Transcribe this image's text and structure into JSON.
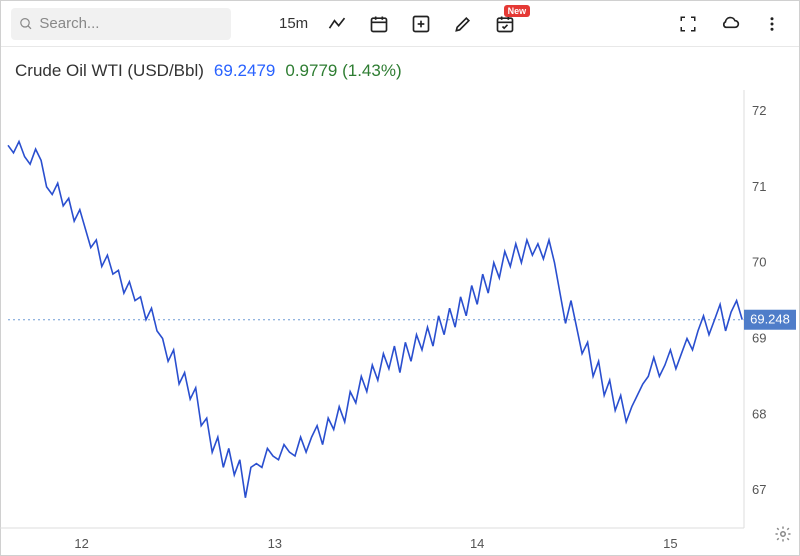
{
  "toolbar": {
    "search_placeholder": "Search...",
    "interval_label": "15m",
    "new_badge": "New"
  },
  "header": {
    "symbol": "Crude Oil WTI (USD/Bbl)",
    "price": "69.2479",
    "change": "0.9779 (1.43%)"
  },
  "chart": {
    "type": "line",
    "line_color": "#2a4fcf",
    "line_width": 1.6,
    "background_color": "#ffffff",
    "dotted_line_color": "#6e9bd6",
    "price_tag_bg": "#4f7dc9",
    "price_tag_text_color": "#ffffff",
    "y": {
      "min": 66.5,
      "max": 72.2,
      "ticks": [
        67,
        68,
        69,
        70,
        71,
        72
      ],
      "fontsize": 13
    },
    "x": {
      "min": 0,
      "max": 400,
      "ticks": [
        {
          "pos": 40,
          "label": "12"
        },
        {
          "pos": 145,
          "label": "13"
        },
        {
          "pos": 255,
          "label": "14"
        },
        {
          "pos": 360,
          "label": "15"
        }
      ],
      "fontsize": 13
    },
    "current_price": 69.248,
    "current_price_label": "69.248",
    "series": [
      [
        0,
        71.55
      ],
      [
        3,
        71.45
      ],
      [
        6,
        71.6
      ],
      [
        9,
        71.4
      ],
      [
        12,
        71.3
      ],
      [
        15,
        71.5
      ],
      [
        18,
        71.35
      ],
      [
        21,
        71.0
      ],
      [
        24,
        70.9
      ],
      [
        27,
        71.05
      ],
      [
        30,
        70.75
      ],
      [
        33,
        70.85
      ],
      [
        36,
        70.55
      ],
      [
        39,
        70.7
      ],
      [
        42,
        70.45
      ],
      [
        45,
        70.2
      ],
      [
        48,
        70.3
      ],
      [
        51,
        69.95
      ],
      [
        54,
        70.1
      ],
      [
        57,
        69.85
      ],
      [
        60,
        69.9
      ],
      [
        63,
        69.6
      ],
      [
        66,
        69.75
      ],
      [
        69,
        69.5
      ],
      [
        72,
        69.55
      ],
      [
        75,
        69.25
      ],
      [
        78,
        69.4
      ],
      [
        81,
        69.1
      ],
      [
        84,
        69.0
      ],
      [
        87,
        68.7
      ],
      [
        90,
        68.85
      ],
      [
        93,
        68.4
      ],
      [
        96,
        68.55
      ],
      [
        99,
        68.2
      ],
      [
        102,
        68.35
      ],
      [
        105,
        67.85
      ],
      [
        108,
        67.95
      ],
      [
        111,
        67.5
      ],
      [
        114,
        67.7
      ],
      [
        117,
        67.3
      ],
      [
        120,
        67.55
      ],
      [
        123,
        67.2
      ],
      [
        126,
        67.4
      ],
      [
        129,
        66.9
      ],
      [
        132,
        67.3
      ],
      [
        135,
        67.35
      ],
      [
        138,
        67.3
      ],
      [
        141,
        67.55
      ],
      [
        144,
        67.45
      ],
      [
        147,
        67.4
      ],
      [
        150,
        67.6
      ],
      [
        153,
        67.5
      ],
      [
        156,
        67.45
      ],
      [
        159,
        67.7
      ],
      [
        162,
        67.5
      ],
      [
        165,
        67.7
      ],
      [
        168,
        67.85
      ],
      [
        171,
        67.6
      ],
      [
        174,
        67.95
      ],
      [
        177,
        67.8
      ],
      [
        180,
        68.1
      ],
      [
        183,
        67.9
      ],
      [
        186,
        68.3
      ],
      [
        189,
        68.15
      ],
      [
        192,
        68.5
      ],
      [
        195,
        68.3
      ],
      [
        198,
        68.65
      ],
      [
        201,
        68.45
      ],
      [
        204,
        68.8
      ],
      [
        207,
        68.6
      ],
      [
        210,
        68.9
      ],
      [
        213,
        68.55
      ],
      [
        216,
        68.95
      ],
      [
        219,
        68.7
      ],
      [
        222,
        69.05
      ],
      [
        225,
        68.85
      ],
      [
        228,
        69.15
      ],
      [
        231,
        68.9
      ],
      [
        234,
        69.3
      ],
      [
        237,
        69.05
      ],
      [
        240,
        69.4
      ],
      [
        243,
        69.15
      ],
      [
        246,
        69.55
      ],
      [
        249,
        69.3
      ],
      [
        252,
        69.7
      ],
      [
        255,
        69.45
      ],
      [
        258,
        69.85
      ],
      [
        261,
        69.6
      ],
      [
        264,
        70.0
      ],
      [
        267,
        69.8
      ],
      [
        270,
        70.15
      ],
      [
        273,
        69.95
      ],
      [
        276,
        70.25
      ],
      [
        279,
        70.0
      ],
      [
        282,
        70.3
      ],
      [
        285,
        70.1
      ],
      [
        288,
        70.25
      ],
      [
        291,
        70.05
      ],
      [
        294,
        70.3
      ],
      [
        297,
        70.0
      ],
      [
        300,
        69.6
      ],
      [
        303,
        69.2
      ],
      [
        306,
        69.5
      ],
      [
        309,
        69.15
      ],
      [
        312,
        68.8
      ],
      [
        315,
        68.95
      ],
      [
        318,
        68.5
      ],
      [
        321,
        68.7
      ],
      [
        324,
        68.25
      ],
      [
        327,
        68.45
      ],
      [
        330,
        68.05
      ],
      [
        333,
        68.25
      ],
      [
        336,
        67.9
      ],
      [
        339,
        68.1
      ],
      [
        342,
        68.25
      ],
      [
        345,
        68.4
      ],
      [
        348,
        68.5
      ],
      [
        351,
        68.75
      ],
      [
        354,
        68.5
      ],
      [
        357,
        68.65
      ],
      [
        360,
        68.85
      ],
      [
        363,
        68.6
      ],
      [
        366,
        68.8
      ],
      [
        369,
        69.0
      ],
      [
        372,
        68.85
      ],
      [
        375,
        69.1
      ],
      [
        378,
        69.3
      ],
      [
        381,
        69.05
      ],
      [
        384,
        69.25
      ],
      [
        387,
        69.45
      ],
      [
        390,
        69.1
      ],
      [
        393,
        69.35
      ],
      [
        396,
        69.5
      ],
      [
        399,
        69.25
      ]
    ]
  }
}
